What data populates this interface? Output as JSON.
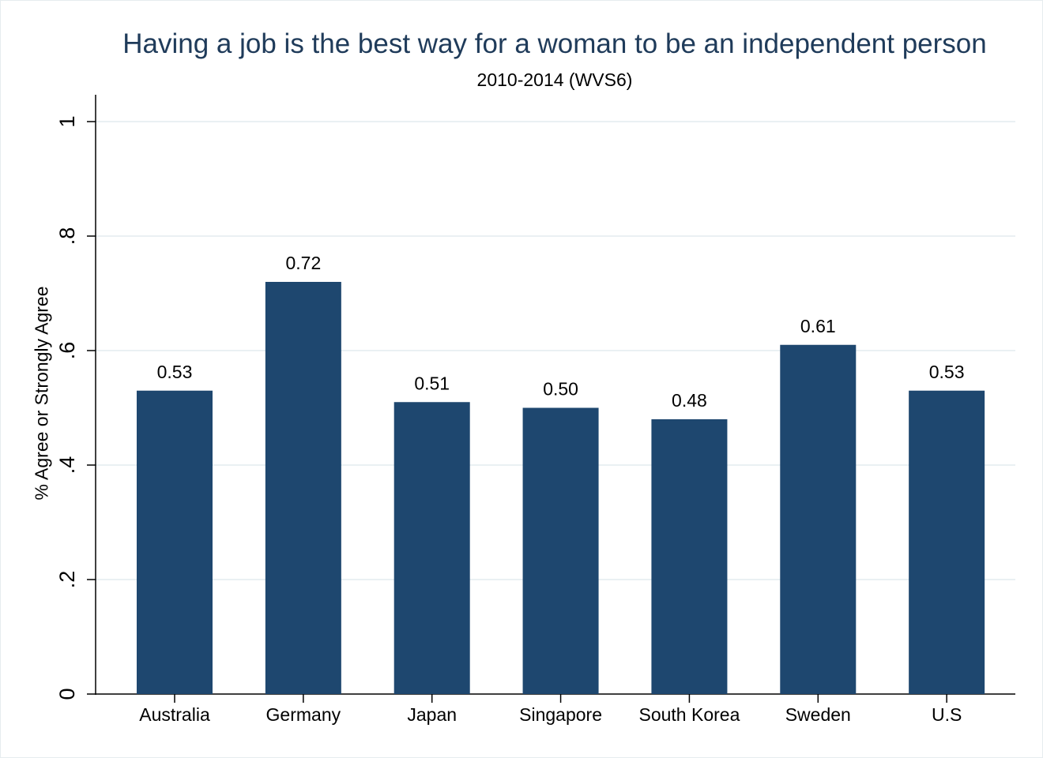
{
  "chart_data": {
    "type": "bar",
    "title": "Having a job is the best way for a woman to be an independent person",
    "subtitle": "2010-2014 (WVS6)",
    "xlabel": "",
    "ylabel": "% Agree or Strongly Agree",
    "categories": [
      "Australia",
      "Germany",
      "Japan",
      "Singapore",
      "South Korea",
      "Sweden",
      "U.S"
    ],
    "values": [
      0.53,
      0.72,
      0.51,
      0.5,
      0.48,
      0.61,
      0.53
    ],
    "value_labels": [
      "0.53",
      "0.72",
      "0.51",
      "0.50",
      "0.48",
      "0.61",
      "0.53"
    ],
    "ylim": [
      0,
      1
    ],
    "yticks": [
      0,
      0.2,
      0.4,
      0.6,
      0.8,
      1
    ],
    "ytick_labels": [
      "0",
      ".2",
      ".4",
      ".6",
      ".8",
      "1"
    ],
    "grid": true,
    "colors": {
      "bar": "#1e476f",
      "title": "#1f3b5a",
      "grid": "#e3ebef",
      "axis": "#000000"
    }
  }
}
